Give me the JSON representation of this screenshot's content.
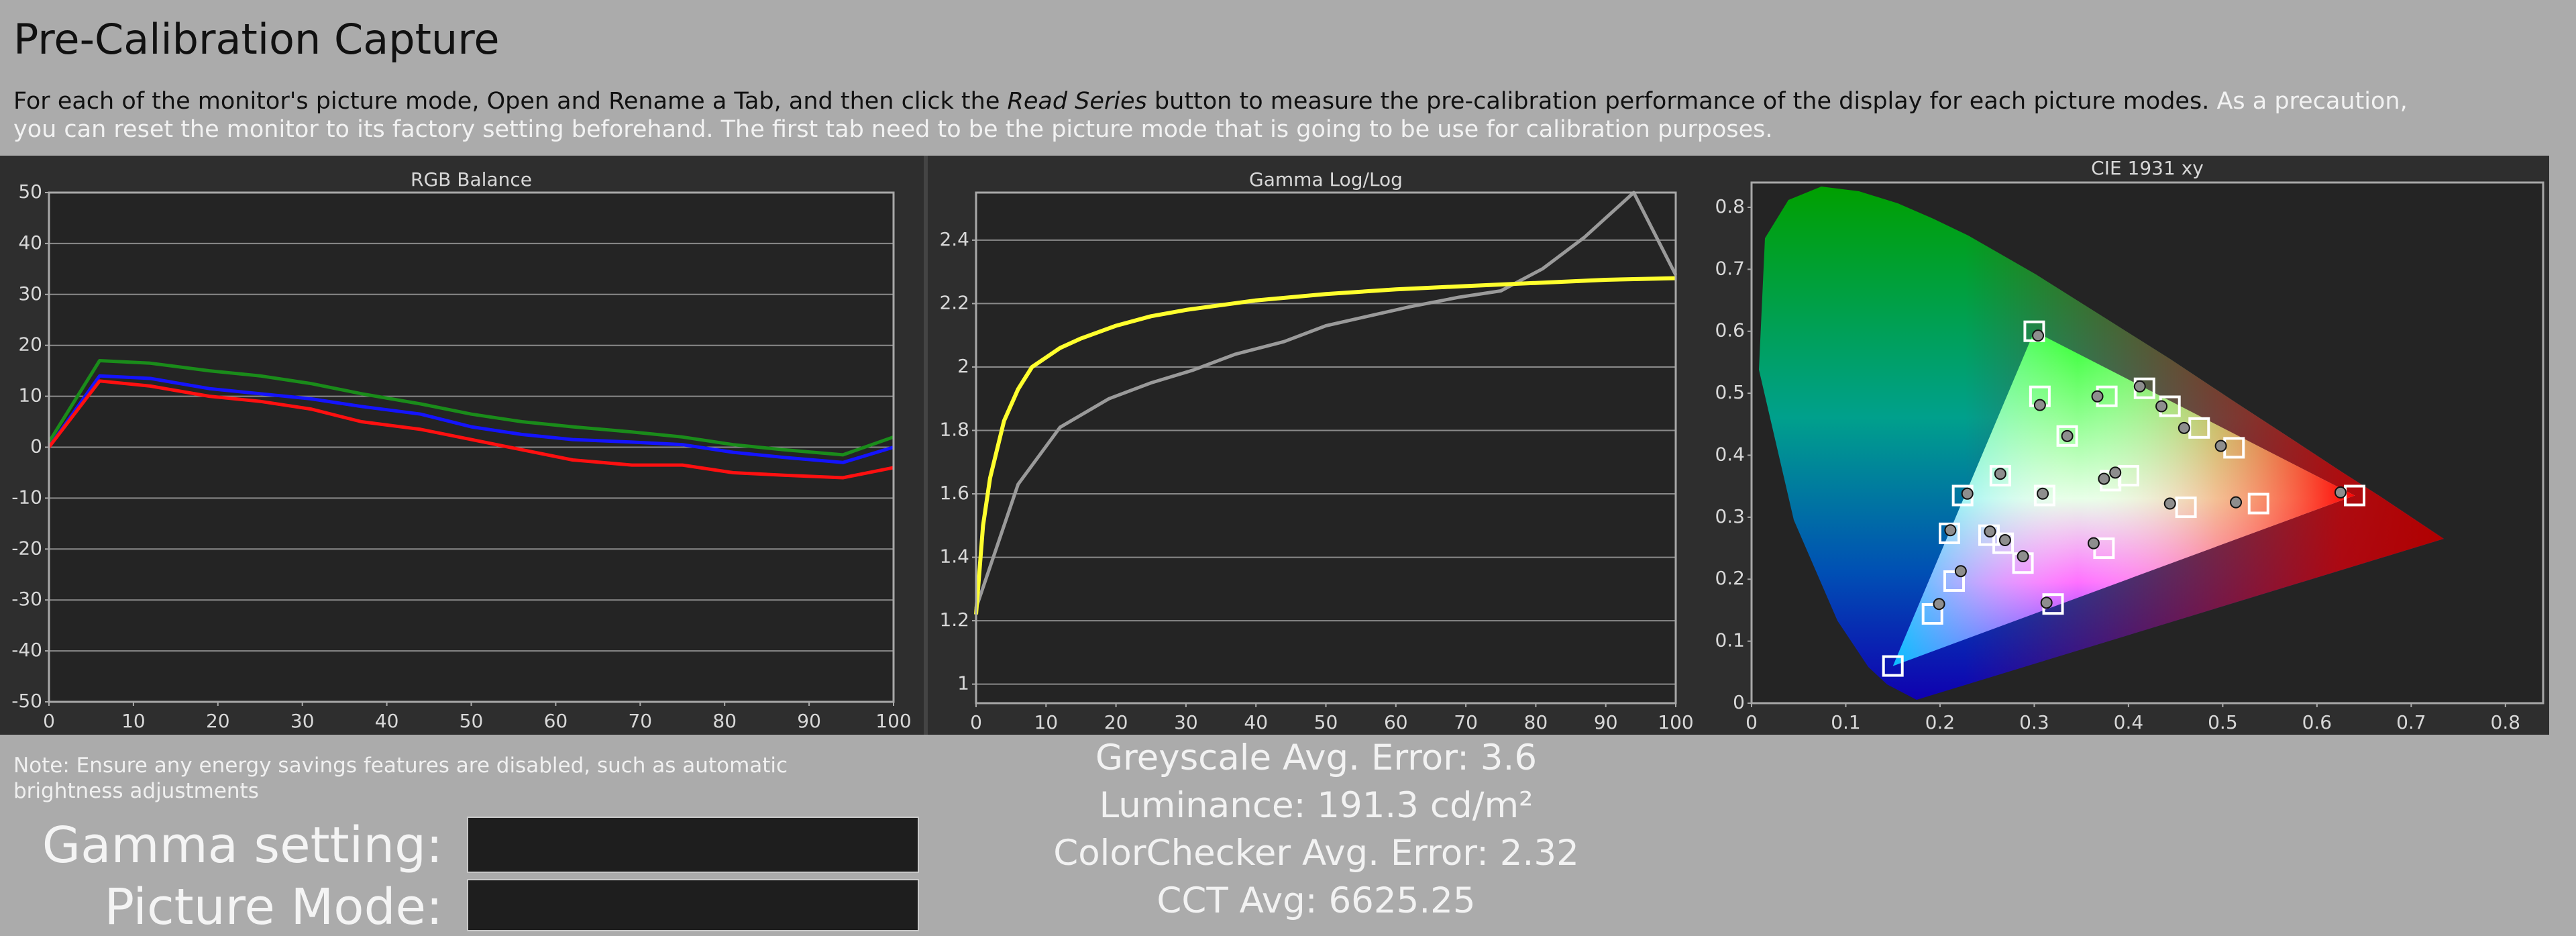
{
  "header": {
    "title": "Pre-Calibration Capture"
  },
  "instructions": {
    "before": "For each of the monitor's picture mode, Open and Rename a Tab, and then click the ",
    "emphasis": "Read Series",
    "after": " button to measure the pre-calibration performance of the display for each picture modes. ",
    "note": "As a precaution, you can reset the monitor to its factory setting beforehand. The first tab need to be the picture mode that is going to be use for calibration purposes."
  },
  "chart_data": [
    {
      "type": "line",
      "title": "RGB Balance",
      "grid": true,
      "xlim": [
        0,
        100
      ],
      "xticks": [
        0,
        10,
        20,
        30,
        40,
        50,
        60,
        70,
        80,
        90,
        100
      ],
      "ylim": [
        -50,
        50
      ],
      "yticks": [
        -50,
        -40,
        -30,
        -20,
        -10,
        0,
        10,
        20,
        30,
        40,
        50
      ],
      "series": [
        {
          "color": "#1a8c1a",
          "width": 5,
          "x": [
            0,
            6,
            12,
            19,
            25,
            31,
            37,
            44,
            50,
            56,
            62,
            69,
            75,
            81,
            87,
            94,
            100
          ],
          "values": [
            1,
            17,
            16.5,
            15,
            14,
            12.5,
            10.5,
            8.5,
            6.5,
            5,
            4,
            3,
            2,
            0.5,
            -0.5,
            -1.5,
            2
          ]
        },
        {
          "color": "#1414ff",
          "width": 5,
          "x": [
            0,
            6,
            12,
            19,
            25,
            31,
            37,
            44,
            50,
            56,
            62,
            69,
            75,
            81,
            87,
            94,
            100
          ],
          "values": [
            0,
            14,
            13.5,
            11.5,
            10.5,
            9.5,
            8,
            6.5,
            4,
            2.5,
            1.5,
            1,
            0.5,
            -1,
            -2,
            -3,
            0
          ]
        },
        {
          "color": "#ff1010",
          "width": 5,
          "x": [
            0,
            6,
            12,
            19,
            25,
            31,
            37,
            44,
            50,
            56,
            62,
            69,
            75,
            81,
            87,
            94,
            100
          ],
          "values": [
            0,
            13,
            12,
            10,
            9,
            7.5,
            5,
            3.5,
            1.5,
            -0.5,
            -2.5,
            -3.5,
            -3.5,
            -5,
            -5.5,
            -6,
            -4
          ]
        }
      ]
    },
    {
      "type": "line",
      "title": "Gamma Log/Log",
      "grid": true,
      "xlim": [
        0,
        100
      ],
      "xticks": [
        0,
        10,
        20,
        30,
        40,
        50,
        60,
        70,
        80,
        90,
        100
      ],
      "ylim": [
        0.94,
        2.55
      ],
      "yticks": [
        1,
        1.2,
        1.4,
        1.6,
        1.8,
        2,
        2.2,
        2.4
      ],
      "series": [
        {
          "color": "#9a9a9a",
          "width": 5,
          "x": [
            0,
            6,
            12,
            19,
            25,
            31,
            37,
            44,
            50,
            56,
            62,
            69,
            75,
            81,
            87,
            94,
            100
          ],
          "values": [
            1.24,
            1.63,
            1.81,
            1.9,
            1.95,
            1.99,
            2.04,
            2.08,
            2.13,
            2.16,
            2.19,
            2.22,
            2.24,
            2.31,
            2.41,
            2.55,
            2.29
          ]
        },
        {
          "color": "#ffff2e",
          "width": 6,
          "x": [
            0,
            1,
            2,
            4,
            6,
            8,
            10,
            12,
            15,
            20,
            25,
            30,
            40,
            50,
            60,
            70,
            80,
            90,
            100
          ],
          "values": [
            1.22,
            1.5,
            1.65,
            1.83,
            1.93,
            2,
            2.03,
            2.06,
            2.09,
            2.13,
            2.16,
            2.18,
            2.21,
            2.23,
            2.245,
            2.255,
            2.265,
            2.275,
            2.28
          ]
        }
      ]
    },
    {
      "type": "scatter",
      "title": "CIE 1931 xy",
      "grid": false,
      "xlim": [
        0,
        0.84
      ],
      "xticks": [
        0,
        0.1,
        0.2,
        0.3,
        0.4,
        0.5,
        0.6,
        0.7,
        0.8
      ],
      "ylim": [
        0,
        0.84
      ],
      "yticks": [
        0,
        0.1,
        0.2,
        0.3,
        0.4,
        0.5,
        0.6,
        0.7,
        0.8
      ],
      "series": [
        {
          "marker": "square",
          "color": "#ffffff",
          "x": [
            0.3,
            0.64,
            0.15,
            0.306,
            0.377,
            0.417,
            0.444,
            0.475,
            0.512,
            0.335,
            0.264,
            0.4,
            0.381,
            0.224,
            0.311,
            0.461,
            0.538,
            0.21,
            0.252,
            0.267,
            0.288,
            0.374,
            0.215,
            0.192,
            0.32
          ],
          "values": [
            0.6,
            0.335,
            0.06,
            0.495,
            0.495,
            0.508,
            0.479,
            0.444,
            0.412,
            0.431,
            0.367,
            0.367,
            0.359,
            0.335,
            0.335,
            0.316,
            0.322,
            0.274,
            0.271,
            0.258,
            0.226,
            0.25,
            0.197,
            0.144,
            0.16
          ]
        },
        {
          "marker": "circle",
          "color": "#8e8e8e",
          "x": [
            0.304,
            0.625,
            0.306,
            0.367,
            0.412,
            0.435,
            0.459,
            0.498,
            0.335,
            0.264,
            0.386,
            0.374,
            0.229,
            0.309,
            0.444,
            0.514,
            0.211,
            0.253,
            0.269,
            0.288,
            0.363,
            0.222,
            0.199,
            0.313
          ],
          "values": [
            0.593,
            0.34,
            0.481,
            0.495,
            0.511,
            0.479,
            0.444,
            0.415,
            0.431,
            0.37,
            0.372,
            0.362,
            0.338,
            0.338,
            0.322,
            0.324,
            0.279,
            0.277,
            0.263,
            0.237,
            0.258,
            0.213,
            0.16,
            0.162
          ]
        }
      ]
    }
  ],
  "note": "Note: Ensure any energy savings features are disabled, such as automatic brightness adjustments",
  "stats": [
    "Greyscale Avg. Error: 3.6",
    "Luminance: 191.3 cd/m²",
    "ColorChecker Avg. Error: 2.32",
    "CCT Avg: 6625.25"
  ],
  "form": {
    "gamma_label": "Gamma setting:",
    "picture_mode_label": "Picture Mode:"
  }
}
